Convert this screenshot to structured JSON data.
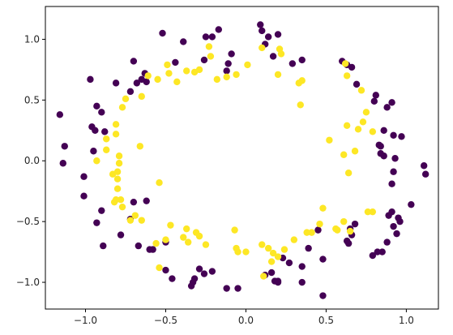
{
  "chart_data": {
    "type": "scatter",
    "title": "",
    "xlabel": "",
    "ylabel": "",
    "xlim": [
      -1.25,
      1.2
    ],
    "ylim": [
      -1.22,
      1.27
    ],
    "grid": false,
    "legend": "none",
    "x_ticks": [
      -1.0,
      -0.5,
      0.0,
      0.5,
      1.0
    ],
    "x_tick_labels": [
      "−1.0",
      "−0.5",
      "0.0",
      "0.5",
      "1.0"
    ],
    "y_ticks": [
      -1.0,
      -0.5,
      0.0,
      0.5,
      1.0
    ],
    "y_tick_labels": [
      "−1.0",
      "−0.5",
      "0.0",
      "0.5",
      "1.0"
    ],
    "series": [
      {
        "color": "#440154",
        "points": [
          [
            -1.16,
            0.38
          ],
          [
            -1.13,
            0.12
          ],
          [
            -1.14,
            -0.02
          ],
          [
            -0.97,
            0.67
          ],
          [
            -0.93,
            0.45
          ],
          [
            -0.9,
            0.4
          ],
          [
            -0.96,
            0.28
          ],
          [
            -0.94,
            0.25
          ],
          [
            -0.88,
            0.24
          ],
          [
            -0.95,
            0.08
          ],
          [
            -1.01,
            -0.13
          ],
          [
            -1.01,
            -0.29
          ],
          [
            -0.9,
            -0.41
          ],
          [
            -0.93,
            -0.51
          ],
          [
            -0.89,
            -0.7
          ],
          [
            -0.78,
            -0.61
          ],
          [
            -0.81,
            0.64
          ],
          [
            -0.72,
            0.57
          ],
          [
            -0.7,
            0.82
          ],
          [
            -0.68,
            0.64
          ],
          [
            -0.63,
            0.72
          ],
          [
            -0.65,
            0.67
          ],
          [
            -0.62,
            0.65
          ],
          [
            -0.52,
            1.05
          ],
          [
            -0.39,
            0.98
          ],
          [
            -0.26,
            0.83
          ],
          [
            -0.25,
            1.02
          ],
          [
            -0.21,
            1.02
          ],
          [
            -0.17,
            1.08
          ],
          [
            -0.12,
            0.74
          ],
          [
            -0.09,
            0.88
          ],
          [
            -0.11,
            0.8
          ],
          [
            0.09,
            1.12
          ],
          [
            0.1,
            1.07
          ],
          [
            0.12,
            0.96
          ],
          [
            0.14,
            1.02
          ],
          [
            0.17,
            0.86
          ],
          [
            0.2,
            1.04
          ],
          [
            0.29,
            0.8
          ],
          [
            0.35,
            0.83
          ],
          [
            0.6,
            0.82
          ],
          [
            0.63,
            0.79
          ],
          [
            0.66,
            0.77
          ],
          [
            0.69,
            0.63
          ],
          [
            0.81,
            0.54
          ],
          [
            0.8,
            0.49
          ],
          [
            0.88,
            0.44
          ],
          [
            0.91,
            0.48
          ],
          [
            0.86,
            0.25
          ],
          [
            0.92,
            0.21
          ],
          [
            0.83,
            0.13
          ],
          [
            0.84,
            0.12
          ],
          [
            0.97,
            0.2
          ],
          [
            0.84,
            0.06
          ],
          [
            0.86,
            0.04
          ],
          [
            0.93,
            0.02
          ],
          [
            0.92,
            -0.09
          ],
          [
            1.11,
            -0.04
          ],
          [
            1.12,
            -0.11
          ],
          [
            0.91,
            -0.19
          ],
          [
            1.03,
            -0.36
          ],
          [
            0.91,
            -0.42
          ],
          [
            0.89,
            -0.45
          ],
          [
            0.95,
            -0.47
          ],
          [
            0.92,
            -0.54
          ],
          [
            0.96,
            -0.5
          ],
          [
            0.94,
            -0.6
          ],
          [
            0.88,
            -0.67
          ],
          [
            0.85,
            -0.75
          ],
          [
            0.82,
            -0.75
          ],
          [
            0.79,
            -0.78
          ],
          [
            0.68,
            -0.52
          ],
          [
            0.65,
            -0.56
          ],
          [
            0.66,
            -0.61
          ],
          [
            0.64,
            -0.68
          ],
          [
            0.63,
            -0.66
          ],
          [
            0.48,
            -0.81
          ],
          [
            0.45,
            -0.57
          ],
          [
            0.39,
            -0.72
          ],
          [
            0.35,
            -0.87
          ],
          [
            0.27,
            -0.84
          ],
          [
            0.23,
            -0.8
          ],
          [
            0.16,
            -0.92
          ],
          [
            0.12,
            -0.94
          ],
          [
            0.2,
            -0.99
          ],
          [
            0.2,
            -1.0
          ],
          [
            0.18,
            -0.99
          ],
          [
            0.35,
            -1.0
          ],
          [
            0.48,
            -1.11
          ],
          [
            -0.05,
            -1.05
          ],
          [
            -0.12,
            -1.05
          ],
          [
            -0.21,
            -0.91
          ],
          [
            -0.26,
            -0.93
          ],
          [
            -0.29,
            -0.89
          ],
          [
            -0.32,
            -0.97
          ],
          [
            -0.33,
            -1.0
          ],
          [
            -0.34,
            -1.03
          ],
          [
            -0.46,
            -0.97
          ],
          [
            -0.5,
            -0.9
          ],
          [
            -0.5,
            -0.67
          ],
          [
            -0.58,
            -0.73
          ],
          [
            -0.6,
            -0.73
          ],
          [
            -0.67,
            -0.7
          ],
          [
            -0.7,
            -0.34
          ],
          [
            -0.72,
            -0.48
          ],
          [
            -0.62,
            -0.33
          ],
          [
            -0.44,
            0.81
          ]
        ]
      },
      {
        "color": "#fde725",
        "points": [
          [
            -0.93,
            0.0
          ],
          [
            -0.87,
            0.18
          ],
          [
            -0.87,
            0.09
          ],
          [
            -0.81,
            0.3
          ],
          [
            -0.81,
            0.22
          ],
          [
            -0.77,
            0.44
          ],
          [
            -0.75,
            0.51
          ],
          [
            -0.65,
            0.53
          ],
          [
            -0.61,
            0.7
          ],
          [
            -0.55,
            0.67
          ],
          [
            -0.48,
            0.72
          ],
          [
            -0.49,
            0.79
          ],
          [
            -0.43,
            0.65
          ],
          [
            -0.37,
            0.74
          ],
          [
            -0.32,
            0.73
          ],
          [
            -0.29,
            0.75
          ],
          [
            -0.23,
            0.94
          ],
          [
            -0.22,
            0.86
          ],
          [
            -0.18,
            0.67
          ],
          [
            -0.12,
            0.69
          ],
          [
            -0.06,
            0.71
          ],
          [
            0.01,
            0.79
          ],
          [
            0.1,
            0.93
          ],
          [
            0.21,
            0.92
          ],
          [
            0.22,
            0.88
          ],
          [
            0.2,
            0.71
          ],
          [
            0.33,
            0.64
          ],
          [
            0.35,
            0.66
          ],
          [
            0.34,
            0.46
          ],
          [
            0.62,
            0.8
          ],
          [
            0.63,
            0.7
          ],
          [
            0.72,
            0.58
          ],
          [
            0.75,
            0.4
          ],
          [
            0.73,
            0.32
          ],
          [
            0.63,
            0.29
          ],
          [
            0.7,
            0.26
          ],
          [
            0.79,
            0.24
          ],
          [
            0.61,
            0.05
          ],
          [
            0.68,
            0.08
          ],
          [
            0.64,
            -0.1
          ],
          [
            0.52,
            0.17
          ],
          [
            0.48,
            -0.39
          ],
          [
            0.46,
            -0.52
          ],
          [
            0.56,
            -0.56
          ],
          [
            0.61,
            -0.5
          ],
          [
            0.57,
            -0.57
          ],
          [
            0.65,
            -0.58
          ],
          [
            0.76,
            -0.42
          ],
          [
            0.79,
            -0.42
          ],
          [
            0.41,
            -0.59
          ],
          [
            0.38,
            -0.59
          ],
          [
            0.3,
            -0.65
          ],
          [
            0.24,
            -0.73
          ],
          [
            0.2,
            -0.79
          ],
          [
            0.17,
            -0.76
          ],
          [
            0.14,
            -0.72
          ],
          [
            0.1,
            -0.69
          ],
          [
            0.16,
            -0.83
          ],
          [
            0.11,
            -0.95
          ],
          [
            0.0,
            -0.75
          ],
          [
            -0.05,
            -0.75
          ],
          [
            -0.06,
            -0.72
          ],
          [
            -0.07,
            -0.57
          ],
          [
            -0.25,
            -0.69
          ],
          [
            -0.29,
            -0.62
          ],
          [
            -0.31,
            -0.59
          ],
          [
            -0.36,
            -0.67
          ],
          [
            -0.39,
            -0.63
          ],
          [
            -0.37,
            -0.56
          ],
          [
            -0.47,
            -0.53
          ],
          [
            -0.5,
            -0.65
          ],
          [
            -0.56,
            -0.68
          ],
          [
            -0.54,
            -0.88
          ],
          [
            -0.65,
            -0.49
          ],
          [
            -0.69,
            -0.45
          ],
          [
            -0.72,
            -0.49
          ],
          [
            -0.77,
            -0.38
          ],
          [
            -0.78,
            -0.32
          ],
          [
            -0.82,
            -0.34
          ],
          [
            -0.81,
            -0.32
          ],
          [
            -0.8,
            -0.23
          ],
          [
            -0.8,
            -0.15
          ],
          [
            -0.83,
            -0.11
          ],
          [
            -0.8,
            -0.09
          ],
          [
            -0.79,
            -0.02
          ],
          [
            -0.79,
            0.04
          ],
          [
            -0.66,
            0.12
          ],
          [
            -0.54,
            -0.18
          ]
        ]
      }
    ]
  }
}
